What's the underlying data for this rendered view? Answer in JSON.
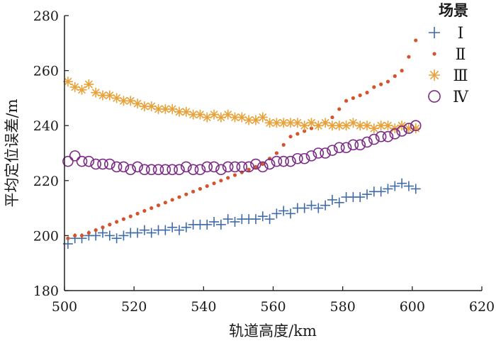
{
  "chart_data": {
    "type": "scatter",
    "title": "",
    "xlabel": "轨道高度/km",
    "ylabel": "平均定位误差/m",
    "xlim": [
      500,
      620
    ],
    "ylim": [
      180,
      280
    ],
    "xticks": [
      "500",
      "520",
      "540",
      "560",
      "580",
      "600",
      "620"
    ],
    "yticks": [
      "180",
      "200",
      "220",
      "240",
      "260",
      "280"
    ],
    "grid": false,
    "legend": {
      "title": "场景",
      "placement": "top-right"
    },
    "x": [
      501,
      503,
      505,
      507,
      509,
      511,
      513,
      515,
      517,
      519,
      521,
      523,
      525,
      527,
      529,
      531,
      533,
      535,
      537,
      539,
      541,
      543,
      545,
      547,
      549,
      551,
      553,
      555,
      557,
      559,
      561,
      563,
      565,
      567,
      569,
      571,
      573,
      575,
      577,
      579,
      581,
      583,
      585,
      587,
      589,
      591,
      593,
      595,
      597,
      599,
      601
    ],
    "series": [
      {
        "name": "Ⅰ",
        "marker": "plus",
        "color": "#3f6aa8",
        "values": [
          197,
          199,
          199,
          200,
          200,
          201,
          200,
          199,
          200,
          201,
          201,
          202,
          201,
          202,
          202,
          203,
          202,
          203,
          204,
          204,
          204,
          205,
          204,
          206,
          205,
          206,
          206,
          206,
          207,
          206,
          208,
          209,
          208,
          210,
          210,
          211,
          210,
          211,
          213,
          212,
          214,
          214,
          214,
          215,
          216,
          216,
          217,
          218,
          219,
          218,
          217
        ]
      },
      {
        "name": "Ⅱ",
        "marker": "dot",
        "color": "#d4532a",
        "values": [
          199,
          200,
          200,
          201,
          202,
          203,
          204,
          205,
          206,
          207,
          208,
          209,
          210,
          211,
          212,
          213,
          214,
          215,
          216,
          217,
          218,
          219,
          220,
          221,
          222,
          223,
          224,
          225,
          226,
          228,
          230,
          233,
          236,
          237,
          238,
          239,
          240,
          241,
          243,
          246,
          249,
          250,
          251,
          252,
          254,
          255,
          256,
          258,
          260,
          265,
          271
        ]
      },
      {
        "name": "Ⅲ",
        "marker": "asterisk",
        "color": "#e8a23a",
        "values": [
          256,
          254,
          253,
          255,
          252,
          251,
          251,
          250,
          249,
          249,
          248,
          247,
          247,
          246,
          246,
          246,
          245,
          245,
          244,
          244,
          243,
          244,
          243,
          244,
          243,
          243,
          242,
          242,
          243,
          241,
          241,
          241,
          241,
          241,
          240,
          241,
          240,
          241,
          240,
          240,
          240,
          241,
          240,
          240,
          239,
          240,
          240,
          239,
          240,
          239,
          239
        ]
      },
      {
        "name": "Ⅳ",
        "marker": "circle",
        "color": "#7b2a86",
        "values": [
          227,
          229,
          227,
          227,
          226,
          226,
          226,
          225,
          225,
          224,
          225,
          224,
          224,
          224,
          224,
          224,
          224,
          225,
          224,
          224,
          225,
          225,
          224,
          225,
          225,
          225,
          225,
          226,
          225,
          226,
          227,
          227,
          227,
          228,
          228,
          229,
          230,
          230,
          231,
          232,
          232,
          233,
          233,
          234,
          235,
          236,
          236,
          237,
          238,
          239,
          240
        ]
      }
    ]
  }
}
